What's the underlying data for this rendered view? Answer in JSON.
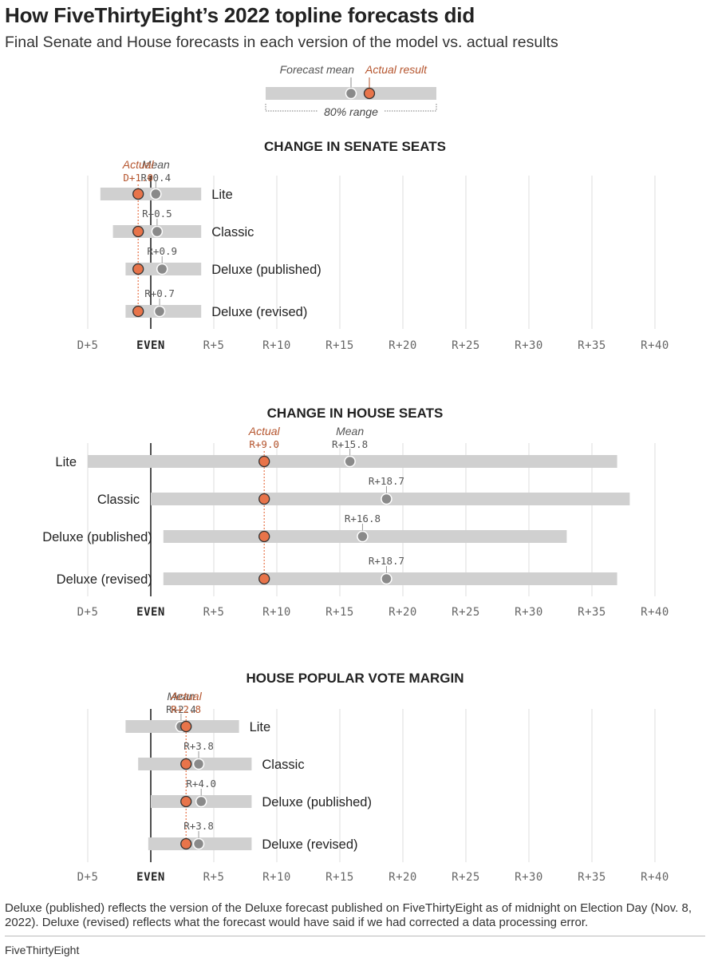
{
  "header": {
    "title": "How FiveThirtyEight’s 2022 topline forecasts did",
    "subtitle": "Final Senate and House forecasts in each version of the model vs. actual results"
  },
  "legend": {
    "forecast_mean": "Forecast mean",
    "actual_result": "Actual result",
    "range": "80% range"
  },
  "colors": {
    "actual": "#e8744a",
    "actual_text": "#b5552e",
    "mean": "#8a8a8a",
    "bar": "#d0d0d0",
    "grid": "#dddddd"
  },
  "chart_data": [
    {
      "type": "range-dot",
      "title": "CHANGE IN SENATE SEATS",
      "x_ticks": [
        -5,
        0,
        5,
        10,
        15,
        20,
        25,
        30,
        35,
        40
      ],
      "x_tick_labels": [
        "D+5",
        "EVEN",
        "R+5",
        "R+10",
        "R+15",
        "R+20",
        "R+25",
        "R+30",
        "R+35",
        "R+40"
      ],
      "xlim": [
        -5,
        40
      ],
      "actual": -1.0,
      "actual_label": "Actual",
      "actual_value_label": "D+1.0",
      "mean_header": "Mean",
      "label_side": "right",
      "rows": [
        {
          "name": "Lite",
          "low": -4,
          "high": 4,
          "mean": 0.4,
          "mean_label": "R+0.4"
        },
        {
          "name": "Classic",
          "low": -3,
          "high": 4,
          "mean": 0.5,
          "mean_label": "R+0.5"
        },
        {
          "name": "Deluxe (published)",
          "low": -2,
          "high": 4,
          "mean": 0.9,
          "mean_label": "R+0.9"
        },
        {
          "name": "Deluxe (revised)",
          "low": -2,
          "high": 4,
          "mean": 0.7,
          "mean_label": "R+0.7"
        }
      ]
    },
    {
      "type": "range-dot",
      "title": "CHANGE IN HOUSE SEATS",
      "x_ticks": [
        -5,
        0,
        5,
        10,
        15,
        20,
        25,
        30,
        35,
        40
      ],
      "x_tick_labels": [
        "D+5",
        "EVEN",
        "R+5",
        "R+10",
        "R+15",
        "R+20",
        "R+25",
        "R+30",
        "R+35",
        "R+40"
      ],
      "xlim": [
        -5,
        40
      ],
      "actual": 9.0,
      "actual_label": "Actual",
      "actual_value_label": "R+9.0",
      "mean_header": "Mean",
      "label_side": "left",
      "rows": [
        {
          "name": "Lite",
          "low": -5,
          "high": 37,
          "mean": 15.8,
          "mean_label": "R+15.8"
        },
        {
          "name": "Classic",
          "low": 0,
          "high": 38,
          "mean": 18.7,
          "mean_label": "R+18.7"
        },
        {
          "name": "Deluxe (published)",
          "low": 1,
          "high": 33,
          "mean": 16.8,
          "mean_label": "R+16.8"
        },
        {
          "name": "Deluxe (revised)",
          "low": 1,
          "high": 37,
          "mean": 18.7,
          "mean_label": "R+18.7"
        }
      ]
    },
    {
      "type": "range-dot",
      "title": "HOUSE POPULAR VOTE MARGIN",
      "x_ticks": [
        -5,
        0,
        5,
        10,
        15,
        20,
        25,
        30,
        35,
        40
      ],
      "x_tick_labels": [
        "D+5",
        "EVEN",
        "R+5",
        "R+10",
        "R+15",
        "R+20",
        "R+25",
        "R+30",
        "R+35",
        "R+40"
      ],
      "xlim": [
        -5,
        40
      ],
      "actual": 2.8,
      "actual_label": "Actual",
      "actual_value_label": "R+2.8",
      "mean_header": "Mean",
      "label_side": "right",
      "rows": [
        {
          "name": "Lite",
          "low": -2,
          "high": 7,
          "mean": 2.4,
          "mean_label": "R+2.4"
        },
        {
          "name": "Classic",
          "low": -1,
          "high": 8,
          "mean": 3.8,
          "mean_label": "R+3.8"
        },
        {
          "name": "Deluxe (published)",
          "low": 0,
          "high": 8,
          "mean": 4.0,
          "mean_label": "R+4.0"
        },
        {
          "name": "Deluxe (revised)",
          "low": -0.2,
          "high": 8,
          "mean": 3.8,
          "mean_label": "R+3.8"
        }
      ]
    }
  ],
  "footer": {
    "note": "Deluxe (published) reflects the version of the Deluxe forecast published on FiveThirtyEight as of midnight on Election Day (Nov. 8, 2022). Deluxe (revised) reflects what the forecast would have said if we had corrected a data processing error.",
    "brand": "FiveThirtyEight"
  }
}
